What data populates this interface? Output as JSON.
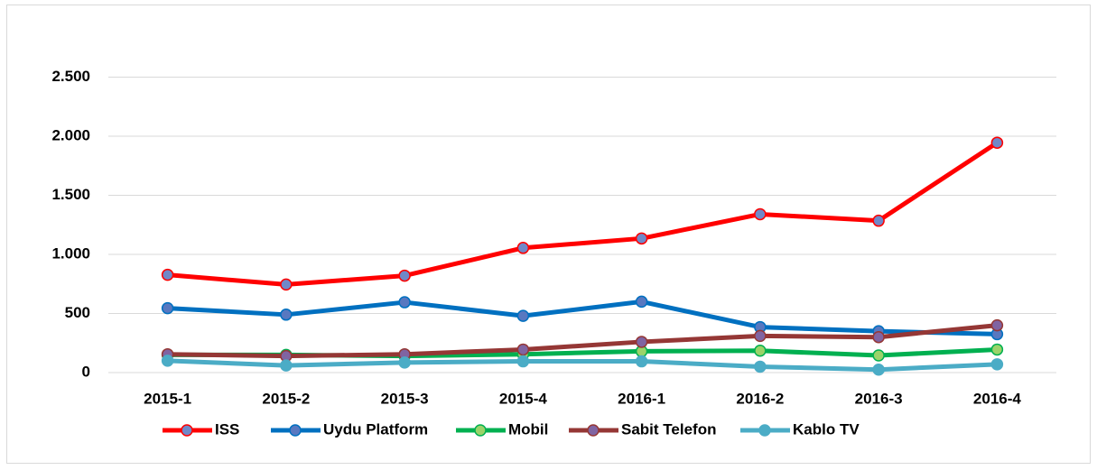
{
  "chart_data": {
    "type": "line",
    "categories": [
      "2015-1",
      "2015-2",
      "2015-3",
      "2015-4",
      "2016-1",
      "2016-2",
      "2016-3",
      "2016-4"
    ],
    "series": [
      {
        "name": "ISS",
        "color": "#ff0000",
        "marker_color": "#7088c8",
        "values": [
          827,
          745,
          820,
          1055,
          1135,
          1340,
          1285,
          1945
        ]
      },
      {
        "name": "Uydu Platform",
        "color": "#0070c0",
        "marker_color": "#5878c0",
        "values": [
          545,
          490,
          595,
          480,
          600,
          385,
          350,
          325
        ]
      },
      {
        "name": "Mobil",
        "color": "#00b050",
        "marker_color": "#9bd36a",
        "values": [
          150,
          150,
          140,
          155,
          180,
          185,
          145,
          195
        ]
      },
      {
        "name": "Sabit Telefon",
        "color": "#953735",
        "marker_color": "#8064a2",
        "values": [
          155,
          140,
          155,
          195,
          260,
          310,
          300,
          400
        ]
      },
      {
        "name": "Kablo TV",
        "color": "#4bacc6",
        "marker_color": "#4bacc6",
        "values": [
          100,
          60,
          85,
          95,
          95,
          50,
          25,
          70
        ]
      }
    ],
    "ylim": [
      0,
      3000
    ],
    "yticks": [
      0,
      500,
      {
        "value": 1000,
        "label": "1.000"
      },
      {
        "value": 1500,
        "label": "1.500"
      },
      {
        "value": 2000,
        "label": "2.000"
      },
      {
        "value": 2500,
        "label": "2.500"
      }
    ],
    "grid": true,
    "legend": "bottom"
  }
}
